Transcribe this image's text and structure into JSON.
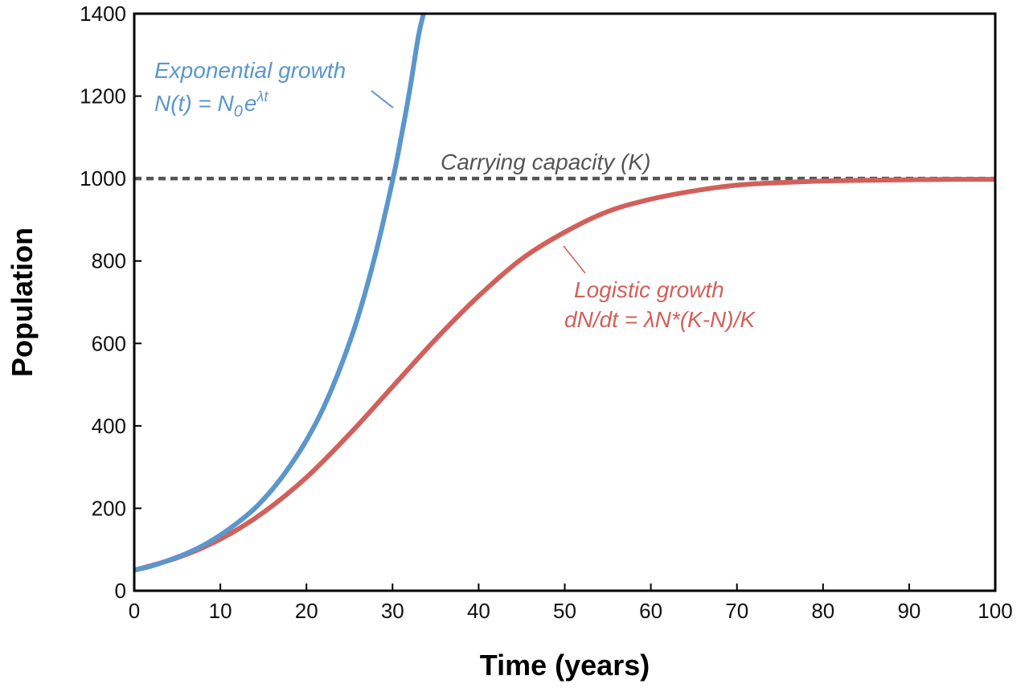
{
  "chart_data": {
    "type": "line",
    "title": "",
    "xlabel": "Time (years)",
    "ylabel": "Population",
    "xlim": [
      0,
      100
    ],
    "ylim": [
      0,
      1400
    ],
    "xticks": [
      0,
      10,
      20,
      30,
      40,
      50,
      60,
      70,
      80,
      90,
      100
    ],
    "yticks": [
      0,
      200,
      400,
      600,
      800,
      1000,
      1200,
      1400
    ],
    "grid": false,
    "legend": "none",
    "series": [
      {
        "key": "exponential",
        "color": "#5b96cc",
        "x": [
          0,
          2,
          4,
          6,
          8,
          10,
          12,
          14,
          16,
          18,
          20,
          22,
          24,
          26,
          28,
          30,
          31,
          32,
          33,
          33.6
        ],
        "y": [
          50,
          60,
          74,
          90,
          110,
          135,
          165,
          200,
          245,
          300,
          365,
          445,
          545,
          665,
          815,
          995,
          1100,
          1215,
          1345,
          1400
        ]
      },
      {
        "key": "logistic",
        "color": "#d2605a",
        "x": [
          0,
          5,
          10,
          15,
          20,
          25,
          30,
          35,
          40,
          45,
          50,
          55,
          60,
          65,
          70,
          75,
          80,
          85,
          90,
          95,
          100
        ],
        "y": [
          50,
          80,
          125,
          190,
          275,
          380,
          495,
          610,
          715,
          805,
          870,
          920,
          950,
          970,
          984,
          990,
          994,
          996,
          997,
          998,
          998
        ]
      },
      {
        "key": "carrying_capacity",
        "color": "#555555",
        "x": [
          0,
          100
        ],
        "y": [
          1000,
          1000
        ]
      }
    ],
    "annotations": {
      "exponential": {
        "line1": "Exponential growth",
        "formula_prefix": "N(t) = N",
        "formula_sub": "0",
        "formula_base": "e",
        "formula_sup": "λt",
        "color": "#5b96cc"
      },
      "logistic": {
        "line1": "Logistic growth",
        "line2": "dN/dt = λN*(K-N)/K",
        "color": "#d2605a"
      },
      "capacity": {
        "text": "Carrying capacity (K)",
        "color": "#555555"
      }
    }
  }
}
